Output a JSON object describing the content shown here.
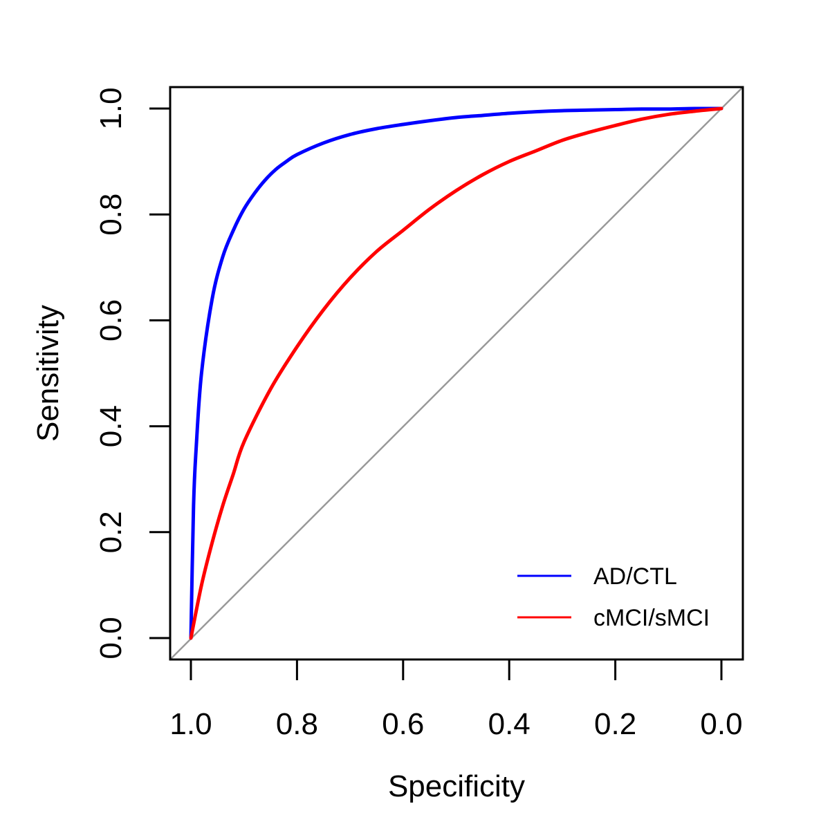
{
  "chart_data": {
    "type": "line",
    "title": "",
    "xlabel": "Specificity",
    "ylabel": "Sensitivity",
    "x_reversed": true,
    "xlim": [
      1.0,
      0.0
    ],
    "ylim": [
      0.0,
      1.0
    ],
    "xticks": [
      "1.0",
      "0.8",
      "0.6",
      "0.4",
      "0.2",
      "0.0"
    ],
    "yticks": [
      "0.0",
      "0.2",
      "0.4",
      "0.6",
      "0.8",
      "1.0"
    ],
    "grid": false,
    "legend_position": "bottom-right",
    "reference_line": {
      "from": [
        1.0,
        0.0
      ],
      "to": [
        0.0,
        1.0
      ],
      "color": "#999999"
    },
    "series": [
      {
        "name": "AD/CTL",
        "color": "#0000ff",
        "specificity": [
          1.0,
          0.995,
          0.99,
          0.98,
          0.96,
          0.94,
          0.92,
          0.9,
          0.88,
          0.86,
          0.84,
          0.82,
          0.8,
          0.75,
          0.7,
          0.65,
          0.6,
          0.55,
          0.5,
          0.45,
          0.4,
          0.35,
          0.3,
          0.25,
          0.2,
          0.15,
          0.1,
          0.05,
          0.0
        ],
        "sensitivity": [
          0.0,
          0.25,
          0.36,
          0.5,
          0.64,
          0.72,
          0.77,
          0.81,
          0.84,
          0.865,
          0.885,
          0.9,
          0.913,
          0.935,
          0.951,
          0.962,
          0.97,
          0.977,
          0.983,
          0.987,
          0.991,
          0.994,
          0.996,
          0.997,
          0.998,
          0.999,
          0.999,
          1.0,
          1.0
        ]
      },
      {
        "name": "cMCI/sMCI",
        "color": "#ff0000",
        "specificity": [
          1.0,
          0.98,
          0.96,
          0.94,
          0.92,
          0.9,
          0.85,
          0.8,
          0.75,
          0.7,
          0.65,
          0.6,
          0.55,
          0.5,
          0.45,
          0.4,
          0.35,
          0.3,
          0.25,
          0.2,
          0.15,
          0.1,
          0.05,
          0.0
        ],
        "sensitivity": [
          0.0,
          0.1,
          0.18,
          0.25,
          0.31,
          0.37,
          0.47,
          0.55,
          0.62,
          0.68,
          0.73,
          0.77,
          0.81,
          0.845,
          0.875,
          0.9,
          0.92,
          0.94,
          0.955,
          0.968,
          0.98,
          0.989,
          0.995,
          1.0
        ]
      }
    ]
  }
}
